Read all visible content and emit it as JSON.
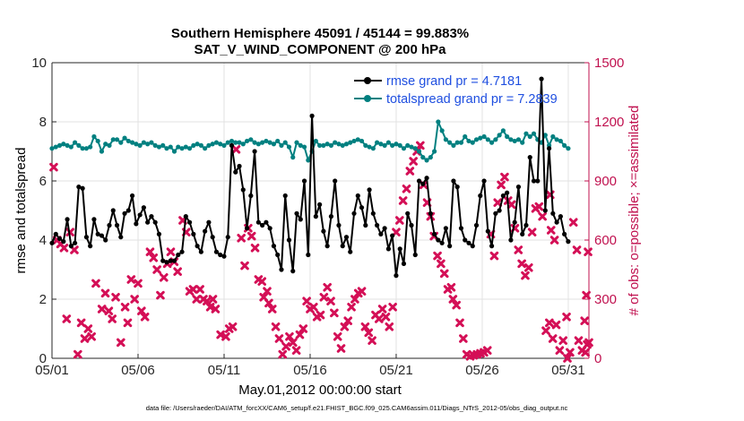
{
  "chart_data": {
    "type": "line",
    "title": "Southern Hemisphere 45091 / 45144 = 99.883%",
    "subtitle": "SAT_V_WIND_COMPONENT @ 200 hPa",
    "xlabel": "May.01,2012 00:00:00 start",
    "ylabel": "rmse and totalspread",
    "y2label": "# of obs: o=possible; ×=assimilated",
    "footnote": "data file: /Users/raeder/DAI/ATM_forcXX/CAM6_setup/f.e21.FHIST_BGC.f09_025.CAM6assim.011/Diags_NTrS_2012-05/obs_diag_output.nc",
    "xlim": [
      0,
      31.2
    ],
    "ylim": [
      0,
      10
    ],
    "y2lim": [
      0,
      1500
    ],
    "xticks": [
      0,
      5,
      10,
      15,
      20,
      25,
      30
    ],
    "xtick_labels": [
      "05/01",
      "05/06",
      "05/11",
      "05/16",
      "05/21",
      "05/26",
      "05/31"
    ],
    "yticks": [
      0,
      2,
      4,
      6,
      8,
      10
    ],
    "ytick_labels": [
      "0",
      "2",
      "4",
      "6",
      "8",
      "10"
    ],
    "y2ticks": [
      0,
      300,
      600,
      900,
      1200,
      1500
    ],
    "y2tick_labels": [
      "0",
      "300",
      "600",
      "900",
      "1200",
      "1500"
    ],
    "legend_position": "top-right",
    "colors": {
      "rmse": "#000000",
      "spread": "#008080",
      "obs": "#d40f56",
      "right_axis": "#c0114f",
      "legend_text": "#1f4fe0"
    },
    "series": [
      {
        "name": "rmse grand pr = 4.7181",
        "values": [
          3.9,
          4.2,
          4.05,
          3.95,
          4.7,
          3.8,
          3.9,
          5.8,
          5.75,
          4.1,
          3.8,
          4.7,
          4.2,
          4.15,
          4.0,
          4.5,
          5.0,
          4.5,
          4.1,
          4.9,
          5.0,
          5.5,
          4.55,
          4.85,
          5.1,
          4.6,
          4.8,
          4.6,
          4.2,
          3.3,
          3.25,
          3.3,
          3.3,
          3.5,
          3.6,
          4.8,
          4.6,
          4.2,
          3.8,
          3.6,
          4.3,
          4.6,
          4.1,
          3.6,
          3.5,
          3.45,
          4.1,
          7.2,
          6.3,
          6.5,
          5.7,
          4.4,
          5.5,
          7.0,
          4.6,
          4.5,
          4.6,
          4.4,
          3.8,
          3.5,
          3.0,
          5.5,
          4.0,
          2.95,
          4.9,
          4.7,
          6.0,
          3.5,
          8.2,
          4.8,
          5.2,
          4.3,
          3.8,
          4.8,
          6.0,
          4.5,
          3.8,
          4.1,
          3.6,
          4.9,
          5.5,
          5.1,
          4.5,
          5.7,
          4.9,
          4.5,
          4.2,
          4.4,
          3.7,
          4.15,
          2.8,
          3.7,
          3.2,
          4.9,
          4.5,
          3.5,
          6.0,
          5.9,
          6.1,
          4.9,
          4.2,
          4.0,
          3.9,
          4.4,
          3.8,
          6.0,
          5.8,
          4.4,
          4.0,
          3.9,
          3.8,
          4.5,
          5.5,
          6.0,
          4.3,
          3.8,
          4.9,
          5.0,
          5.5,
          5.6,
          4.0,
          4.6,
          5.8,
          4.2,
          4.5,
          6.8,
          6.0,
          6.0,
          9.45,
          5.0,
          7.1,
          4.9,
          4.6,
          4.8,
          4.2,
          3.95
        ],
        "x_step": 0.2222
      },
      {
        "name": "totalspread grand pr = 7.2839",
        "values": [
          7.1,
          7.15,
          7.2,
          7.25,
          7.2,
          7.15,
          7.3,
          7.2,
          7.1,
          7.1,
          7.15,
          7.5,
          7.35,
          7.0,
          7.25,
          7.2,
          7.4,
          7.4,
          7.3,
          7.45,
          7.35,
          7.3,
          7.25,
          7.2,
          7.3,
          7.25,
          7.3,
          7.2,
          7.15,
          7.2,
          7.1,
          7.15,
          7.0,
          7.15,
          7.1,
          7.15,
          7.1,
          7.2,
          7.25,
          7.2,
          7.1,
          7.2,
          7.25,
          7.3,
          7.25,
          7.2,
          7.3,
          7.35,
          7.3,
          7.3,
          7.25,
          7.35,
          7.4,
          7.3,
          7.25,
          7.3,
          7.35,
          7.3,
          7.25,
          7.35,
          7.2,
          7.3,
          7.15,
          6.8,
          7.3,
          7.2,
          7.15,
          6.7,
          7.0,
          7.35,
          7.2,
          7.2,
          7.25,
          7.2,
          7.3,
          7.25,
          7.2,
          7.25,
          7.3,
          7.35,
          7.4,
          7.35,
          7.2,
          7.15,
          7.1,
          7.3,
          7.25,
          7.2,
          7.3,
          7.2,
          7.25,
          7.2,
          7.1,
          7.2,
          7.15,
          7.1,
          7.0,
          6.8,
          6.7,
          6.8,
          7.0,
          8.0,
          7.7,
          7.4,
          7.3,
          7.2,
          7.3,
          7.3,
          7.5,
          7.35,
          7.3,
          7.4,
          7.45,
          7.5,
          7.4,
          7.3,
          7.4,
          7.55,
          7.7,
          7.5,
          7.4,
          7.35,
          7.4,
          7.3,
          7.6,
          7.5,
          7.6,
          7.4,
          7.3,
          7.55,
          7.2,
          7.5,
          7.4,
          7.35,
          7.2,
          7.1
        ],
        "x_step": 0.2222
      }
    ],
    "obs_points": [
      [
        0.1,
        970
      ],
      [
        0.3,
        600
      ],
      [
        0.5,
        580
      ],
      [
        0.7,
        560
      ],
      [
        0.85,
        200
      ],
      [
        1.05,
        640
      ],
      [
        1.3,
        550
      ],
      [
        1.5,
        20
      ],
      [
        1.7,
        180
      ],
      [
        1.9,
        100
      ],
      [
        2.1,
        150
      ],
      [
        2.3,
        110
      ],
      [
        2.55,
        380
      ],
      [
        2.9,
        250
      ],
      [
        3.1,
        330
      ],
      [
        3.3,
        240
      ],
      [
        3.5,
        200
      ],
      [
        3.7,
        310
      ],
      [
        4.0,
        80
      ],
      [
        4.25,
        260
      ],
      [
        4.4,
        180
      ],
      [
        4.6,
        400
      ],
      [
        4.8,
        300
      ],
      [
        5.0,
        380
      ],
      [
        5.2,
        240
      ],
      [
        5.4,
        210
      ],
      [
        5.7,
        540
      ],
      [
        5.9,
        510
      ],
      [
        6.1,
        450
      ],
      [
        6.3,
        320
      ],
      [
        6.5,
        410
      ],
      [
        6.7,
        480
      ],
      [
        6.9,
        540
      ],
      [
        7.1,
        490
      ],
      [
        7.3,
        440
      ],
      [
        7.6,
        700
      ],
      [
        7.8,
        640
      ],
      [
        8.0,
        340
      ],
      [
        8.2,
        350
      ],
      [
        8.4,
        300
      ],
      [
        8.6,
        350
      ],
      [
        8.8,
        300
      ],
      [
        9.0,
        290
      ],
      [
        9.2,
        260
      ],
      [
        9.35,
        300
      ],
      [
        9.5,
        250
      ],
      [
        9.8,
        120
      ],
      [
        10.1,
        110
      ],
      [
        10.3,
        150
      ],
      [
        10.5,
        160
      ],
      [
        10.7,
        1060
      ],
      [
        11.0,
        610
      ],
      [
        11.2,
        470
      ],
      [
        11.4,
        660
      ],
      [
        11.6,
        620
      ],
      [
        11.8,
        560
      ],
      [
        12.0,
        400
      ],
      [
        12.2,
        390
      ],
      [
        12.3,
        310
      ],
      [
        12.5,
        340
      ],
      [
        12.6,
        280
      ],
      [
        12.8,
        250
      ],
      [
        13.0,
        160
      ],
      [
        13.2,
        100
      ],
      [
        13.4,
        20
      ],
      [
        13.6,
        60
      ],
      [
        13.8,
        110
      ],
      [
        14.0,
        80
      ],
      [
        14.2,
        40
      ],
      [
        14.4,
        120
      ],
      [
        14.6,
        150
      ],
      [
        14.8,
        290
      ],
      [
        15.0,
        250
      ],
      [
        15.2,
        260
      ],
      [
        15.4,
        210
      ],
      [
        15.6,
        220
      ],
      [
        15.8,
        310
      ],
      [
        16.0,
        360
      ],
      [
        16.2,
        290
      ],
      [
        16.4,
        230
      ],
      [
        16.6,
        110
      ],
      [
        16.8,
        50
      ],
      [
        17.0,
        160
      ],
      [
        17.2,
        190
      ],
      [
        17.4,
        260
      ],
      [
        17.6,
        300
      ],
      [
        17.8,
        330
      ],
      [
        18.0,
        340
      ],
      [
        18.2,
        160
      ],
      [
        18.4,
        130
      ],
      [
        18.6,
        90
      ],
      [
        18.8,
        220
      ],
      [
        19.0,
        200
      ],
      [
        19.2,
        250
      ],
      [
        19.4,
        210
      ],
      [
        19.6,
        160
      ],
      [
        19.8,
        260
      ],
      [
        20.0,
        640
      ],
      [
        20.2,
        700
      ],
      [
        20.4,
        800
      ],
      [
        20.6,
        860
      ],
      [
        20.8,
        950
      ],
      [
        21.0,
        1000
      ],
      [
        21.2,
        1050
      ],
      [
        21.4,
        1080
      ],
      [
        21.6,
        880
      ],
      [
        21.8,
        790
      ],
      [
        22.0,
        720
      ],
      [
        22.2,
        620
      ],
      [
        22.4,
        520
      ],
      [
        22.6,
        480
      ],
      [
        22.8,
        430
      ],
      [
        23.0,
        350
      ],
      [
        23.2,
        360
      ],
      [
        23.3,
        300
      ],
      [
        23.5,
        270
      ],
      [
        23.7,
        180
      ],
      [
        23.9,
        100
      ],
      [
        24.1,
        20
      ],
      [
        24.3,
        10
      ],
      [
        24.5,
        15
      ],
      [
        24.7,
        20
      ],
      [
        24.9,
        25
      ],
      [
        25.1,
        30
      ],
      [
        25.3,
        40
      ],
      [
        25.5,
        630
      ],
      [
        25.7,
        520
      ],
      [
        25.9,
        790
      ],
      [
        26.1,
        880
      ],
      [
        26.3,
        920
      ],
      [
        26.5,
        800
      ],
      [
        26.7,
        780
      ],
      [
        26.9,
        660
      ],
      [
        27.1,
        550
      ],
      [
        27.3,
        480
      ],
      [
        27.5,
        420
      ],
      [
        27.7,
        460
      ],
      [
        27.9,
        640
      ],
      [
        28.1,
        760
      ],
      [
        28.3,
        770
      ],
      [
        28.5,
        720
      ],
      [
        28.7,
        140
      ],
      [
        28.9,
        180
      ],
      [
        29.1,
        100
      ],
      [
        29.3,
        170
      ],
      [
        29.5,
        40
      ],
      [
        29.7,
        90
      ],
      [
        29.9,
        210
      ],
      [
        30.1,
        30
      ],
      [
        30.3,
        690
      ],
      [
        30.5,
        550
      ],
      [
        30.6,
        90
      ],
      [
        30.8,
        40
      ],
      [
        31.0,
        30
      ],
      [
        31.1,
        70
      ],
      [
        31.2,
        80
      ],
      [
        30.95,
        190
      ],
      [
        31.05,
        320
      ],
      [
        31.15,
        540
      ],
      [
        29.95,
        0
      ],
      [
        28.95,
        830
      ],
      [
        29.0,
        650
      ],
      [
        29.2,
        600
      ]
    ]
  }
}
